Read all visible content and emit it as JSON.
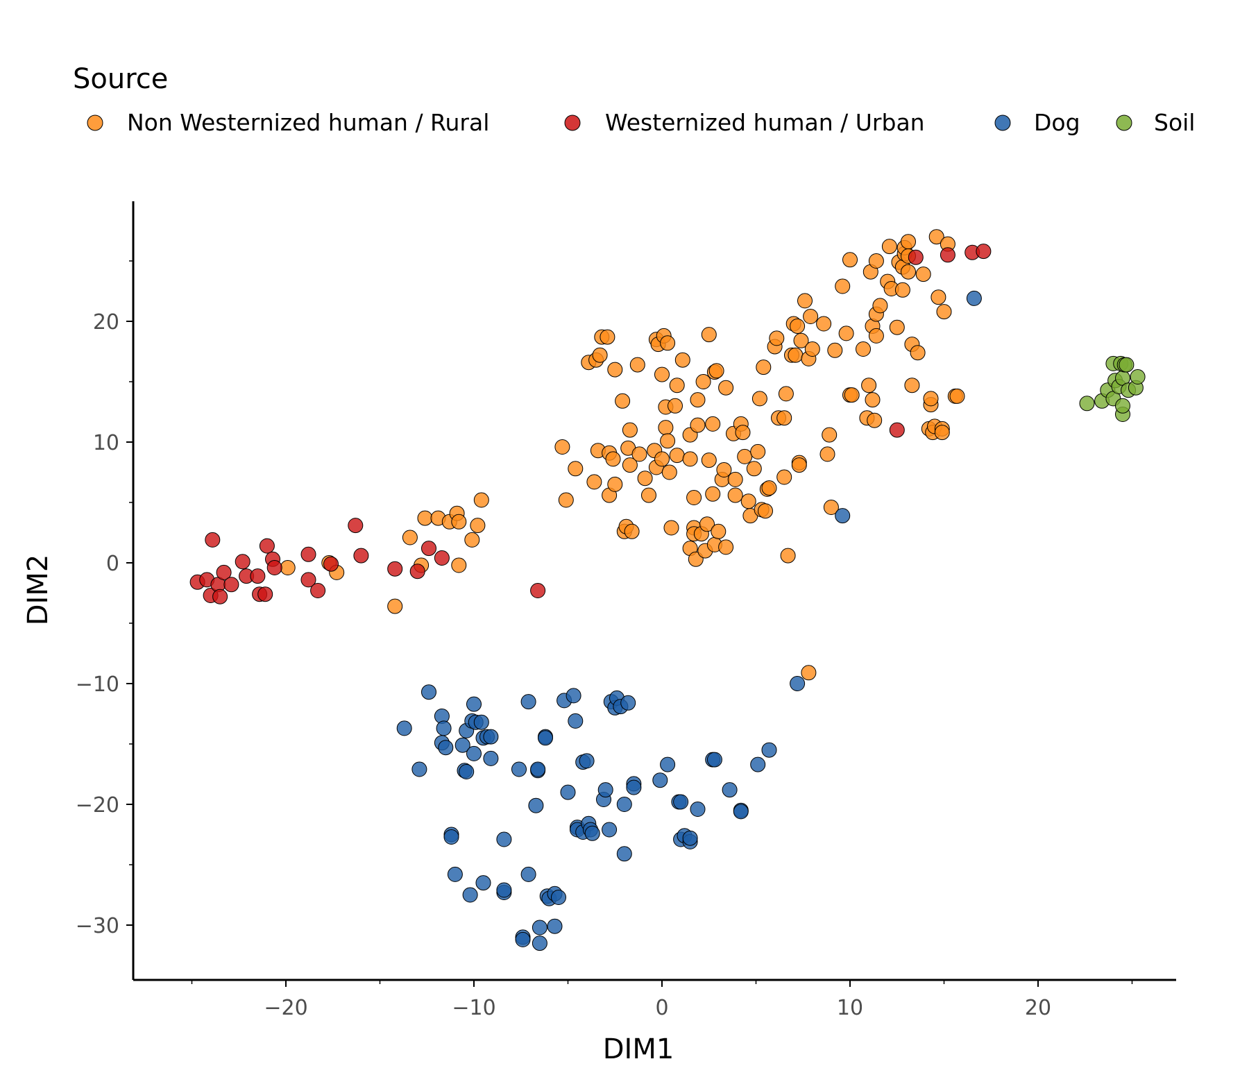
{
  "chart_data": {
    "type": "scatter",
    "xlabel": "DIM1",
    "ylabel": "DIM2",
    "xlim": [
      -27,
      28
    ],
    "ylim": [
      -34.5,
      30
    ],
    "xticks": [
      -20,
      -10,
      0,
      10,
      20
    ],
    "xtick_labels": [
      "−20",
      "−10",
      "0",
      "10",
      "20"
    ],
    "yticks": [
      20,
      10,
      0,
      -10,
      -20,
      -30
    ],
    "ytick_labels": [
      "20",
      "10",
      "0",
      "−10",
      "−20",
      "−30"
    ],
    "grid": false,
    "legend": {
      "title": "Source",
      "position": "top"
    },
    "series": [
      {
        "name": "Non Westernized human / Rural",
        "color": "#ff8c1a",
        "points": [
          [
            -19.9,
            -0.4
          ],
          [
            -17.7,
            0.0
          ],
          [
            -17.3,
            -0.8
          ],
          [
            -14.2,
            -3.6
          ],
          [
            -13.4,
            2.1
          ],
          [
            -12.8,
            -0.2
          ],
          [
            -12.6,
            3.7
          ],
          [
            -11.9,
            3.7
          ],
          [
            -11.3,
            3.4
          ],
          [
            -10.9,
            4.1
          ],
          [
            -10.8,
            3.4
          ],
          [
            -10.8,
            -0.2
          ],
          [
            -10.1,
            1.9
          ],
          [
            -9.8,
            3.1
          ],
          [
            -9.6,
            5.2
          ],
          [
            -5.3,
            9.6
          ],
          [
            -5.1,
            5.2
          ],
          [
            -4.6,
            7.8
          ],
          [
            -3.9,
            16.6
          ],
          [
            -3.6,
            6.7
          ],
          [
            -3.5,
            16.8
          ],
          [
            -3.4,
            9.3
          ],
          [
            -3.3,
            17.2
          ],
          [
            -3.2,
            18.7
          ],
          [
            -2.9,
            18.7
          ],
          [
            -2.8,
            9.1
          ],
          [
            -2.8,
            5.6
          ],
          [
            -2.6,
            8.6
          ],
          [
            -2.5,
            16.0
          ],
          [
            -2.5,
            6.5
          ],
          [
            -2.1,
            13.4
          ],
          [
            -2.0,
            2.6
          ],
          [
            -1.9,
            3.0
          ],
          [
            -1.8,
            9.5
          ],
          [
            -1.7,
            8.1
          ],
          [
            -1.7,
            11.0
          ],
          [
            -1.6,
            2.6
          ],
          [
            -1.3,
            16.4
          ],
          [
            -1.2,
            9.0
          ],
          [
            -0.9,
            7.0
          ],
          [
            -0.7,
            5.6
          ],
          [
            -0.4,
            9.3
          ],
          [
            -0.3,
            18.5
          ],
          [
            -0.3,
            7.9
          ],
          [
            -0.2,
            18.1
          ],
          [
            0.0,
            15.6
          ],
          [
            0.0,
            8.6
          ],
          [
            0.1,
            18.8
          ],
          [
            0.2,
            12.9
          ],
          [
            0.2,
            11.2
          ],
          [
            0.3,
            18.2
          ],
          [
            0.3,
            10.1
          ],
          [
            0.4,
            7.5
          ],
          [
            0.5,
            2.9
          ],
          [
            0.7,
            13.0
          ],
          [
            0.8,
            14.7
          ],
          [
            0.8,
            8.9
          ],
          [
            1.1,
            16.8
          ],
          [
            1.5,
            8.6
          ],
          [
            1.5,
            10.6
          ],
          [
            1.5,
            1.2
          ],
          [
            1.7,
            2.9
          ],
          [
            1.7,
            2.4
          ],
          [
            1.7,
            5.4
          ],
          [
            1.8,
            0.3
          ],
          [
            1.9,
            11.4
          ],
          [
            1.9,
            13.5
          ],
          [
            2.1,
            2.4
          ],
          [
            2.2,
            15.0
          ],
          [
            2.3,
            1.0
          ],
          [
            2.4,
            3.2
          ],
          [
            2.5,
            18.9
          ],
          [
            2.5,
            8.5
          ],
          [
            2.7,
            11.5
          ],
          [
            2.7,
            5.7
          ],
          [
            2.8,
            1.5
          ],
          [
            2.8,
            15.8
          ],
          [
            2.9,
            15.9
          ],
          [
            3.0,
            2.6
          ],
          [
            3.2,
            6.9
          ],
          [
            3.3,
            7.7
          ],
          [
            3.4,
            1.3
          ],
          [
            3.4,
            14.5
          ],
          [
            3.8,
            10.7
          ],
          [
            3.9,
            6.9
          ],
          [
            3.9,
            5.6
          ],
          [
            4.2,
            11.5
          ],
          [
            4.3,
            10.8
          ],
          [
            4.4,
            8.8
          ],
          [
            4.6,
            5.1
          ],
          [
            4.7,
            3.9
          ],
          [
            4.9,
            7.8
          ],
          [
            5.1,
            9.2
          ],
          [
            5.2,
            13.6
          ],
          [
            5.3,
            4.4
          ],
          [
            5.4,
            16.2
          ],
          [
            5.5,
            4.3
          ],
          [
            5.6,
            6.1
          ],
          [
            5.7,
            6.2
          ],
          [
            6.0,
            17.9
          ],
          [
            6.1,
            18.6
          ],
          [
            6.2,
            12.0
          ],
          [
            6.5,
            12.0
          ],
          [
            6.5,
            7.1
          ],
          [
            6.6,
            14.0
          ],
          [
            6.7,
            0.6
          ],
          [
            6.9,
            17.2
          ],
          [
            7.0,
            19.8
          ],
          [
            7.1,
            17.2
          ],
          [
            7.2,
            19.6
          ],
          [
            7.3,
            8.3
          ],
          [
            7.3,
            8.1
          ],
          [
            7.4,
            18.4
          ],
          [
            7.6,
            21.7
          ],
          [
            7.8,
            16.9
          ],
          [
            7.9,
            20.4
          ],
          [
            8.0,
            17.7
          ],
          [
            8.6,
            19.8
          ],
          [
            8.8,
            9.0
          ],
          [
            8.9,
            10.6
          ],
          [
            9.0,
            4.6
          ],
          [
            9.2,
            17.6
          ],
          [
            9.6,
            22.9
          ],
          [
            9.8,
            19.0
          ],
          [
            10.0,
            25.1
          ],
          [
            10.0,
            13.9
          ],
          [
            10.1,
            13.9
          ],
          [
            10.7,
            17.7
          ],
          [
            10.9,
            12.0
          ],
          [
            11.0,
            14.7
          ],
          [
            11.1,
            24.1
          ],
          [
            11.2,
            13.5
          ],
          [
            11.2,
            19.6
          ],
          [
            11.3,
            11.8
          ],
          [
            11.4,
            18.8
          ],
          [
            11.4,
            20.6
          ],
          [
            11.4,
            25.0
          ],
          [
            11.6,
            21.3
          ],
          [
            12.0,
            23.3
          ],
          [
            12.1,
            26.2
          ],
          [
            12.2,
            22.7
          ],
          [
            12.5,
            19.5
          ],
          [
            12.6,
            24.9
          ],
          [
            12.8,
            24.5
          ],
          [
            12.8,
            22.6
          ],
          [
            12.9,
            25.6
          ],
          [
            12.9,
            26.1
          ],
          [
            13.1,
            26.6
          ],
          [
            13.1,
            25.4
          ],
          [
            13.1,
            24.1
          ],
          [
            13.3,
            18.1
          ],
          [
            13.3,
            14.7
          ],
          [
            13.6,
            17.4
          ],
          [
            13.9,
            23.9
          ],
          [
            14.2,
            11.1
          ],
          [
            14.3,
            13.1
          ],
          [
            14.3,
            13.6
          ],
          [
            14.4,
            10.8
          ],
          [
            14.5,
            11.3
          ],
          [
            14.6,
            27.0
          ],
          [
            14.7,
            22.0
          ],
          [
            14.9,
            11.1
          ],
          [
            14.9,
            10.8
          ],
          [
            15.0,
            20.8
          ],
          [
            15.2,
            26.4
          ],
          [
            15.6,
            13.8
          ],
          [
            15.7,
            13.8
          ],
          [
            7.8,
            -9.1
          ]
        ]
      },
      {
        "name": "Westernized human / Urban",
        "color": "#cc1414",
        "points": [
          [
            -24.7,
            -1.6
          ],
          [
            -24.2,
            -1.4
          ],
          [
            -24.0,
            -2.7
          ],
          [
            -23.9,
            1.9
          ],
          [
            -23.6,
            -1.8
          ],
          [
            -23.5,
            -2.8
          ],
          [
            -23.3,
            -0.8
          ],
          [
            -22.9,
            -1.8
          ],
          [
            -22.3,
            0.1
          ],
          [
            -22.1,
            -1.1
          ],
          [
            -21.5,
            -1.1
          ],
          [
            -21.4,
            -2.6
          ],
          [
            -21.1,
            -2.6
          ],
          [
            -21.0,
            1.4
          ],
          [
            -20.7,
            0.3
          ],
          [
            -20.6,
            -0.4
          ],
          [
            -18.8,
            0.7
          ],
          [
            -18.8,
            -1.4
          ],
          [
            -18.3,
            -2.3
          ],
          [
            -17.6,
            -0.1
          ],
          [
            -16.3,
            3.1
          ],
          [
            -16.0,
            0.6
          ],
          [
            -14.2,
            -0.5
          ],
          [
            -13.0,
            -0.7
          ],
          [
            -12.4,
            1.2
          ],
          [
            -11.7,
            0.4
          ],
          [
            -6.6,
            -2.3
          ],
          [
            12.5,
            11.0
          ],
          [
            13.5,
            25.3
          ],
          [
            15.2,
            25.5
          ],
          [
            16.5,
            25.7
          ],
          [
            17.1,
            25.8
          ]
        ]
      },
      {
        "name": "Dog",
        "color": "#1f5fa8",
        "points": [
          [
            -13.7,
            -13.7
          ],
          [
            -12.9,
            -17.1
          ],
          [
            -12.4,
            -10.7
          ],
          [
            -11.7,
            -14.9
          ],
          [
            -11.7,
            -12.7
          ],
          [
            -11.6,
            -13.7
          ],
          [
            -11.5,
            -15.3
          ],
          [
            -11.2,
            -22.5
          ],
          [
            -11.2,
            -22.7
          ],
          [
            -11.0,
            -25.8
          ],
          [
            -10.6,
            -15.1
          ],
          [
            -10.5,
            -17.2
          ],
          [
            -10.4,
            -13.9
          ],
          [
            -10.4,
            -17.3
          ],
          [
            -10.2,
            -27.5
          ],
          [
            -10.1,
            -13.1
          ],
          [
            -10.0,
            -11.7
          ],
          [
            -10.0,
            -15.8
          ],
          [
            -9.9,
            -13.2
          ],
          [
            -9.6,
            -13.2
          ],
          [
            -9.5,
            -26.5
          ],
          [
            -9.5,
            -14.5
          ],
          [
            -9.3,
            -14.4
          ],
          [
            -9.1,
            -16.2
          ],
          [
            -9.1,
            -14.4
          ],
          [
            -8.4,
            -27.3
          ],
          [
            -8.4,
            -22.9
          ],
          [
            -8.4,
            -27.1
          ],
          [
            -7.6,
            -17.1
          ],
          [
            -7.4,
            -31.0
          ],
          [
            -7.4,
            -31.2
          ],
          [
            -7.1,
            -11.5
          ],
          [
            -7.1,
            -25.8
          ],
          [
            -6.7,
            -20.1
          ],
          [
            -6.6,
            -17.2
          ],
          [
            -6.6,
            -17.1
          ],
          [
            -6.5,
            -30.2
          ],
          [
            -6.5,
            -31.5
          ],
          [
            -6.2,
            -14.4
          ],
          [
            -6.2,
            -14.5
          ],
          [
            -6.1,
            -27.6
          ],
          [
            -6.0,
            -27.8
          ],
          [
            -5.7,
            -30.1
          ],
          [
            -5.7,
            -27.4
          ],
          [
            -5.5,
            -27.7
          ],
          [
            -5.2,
            -11.4
          ],
          [
            -5.0,
            -19.0
          ],
          [
            -4.7,
            -11.0
          ],
          [
            -4.6,
            -13.1
          ],
          [
            -4.5,
            -21.9
          ],
          [
            -4.5,
            -22.1
          ],
          [
            -4.2,
            -16.5
          ],
          [
            -4.2,
            -22.3
          ],
          [
            -4.0,
            -16.4
          ],
          [
            -3.9,
            -21.6
          ],
          [
            -3.8,
            -22.1
          ],
          [
            -3.7,
            -22.4
          ],
          [
            -3.1,
            -19.6
          ],
          [
            -3.0,
            -18.8
          ],
          [
            -2.8,
            -22.1
          ],
          [
            -2.7,
            -11.5
          ],
          [
            -2.5,
            -12.0
          ],
          [
            -2.4,
            -11.2
          ],
          [
            -2.2,
            -11.9
          ],
          [
            -2.0,
            -24.1
          ],
          [
            -2.0,
            -20.0
          ],
          [
            -1.8,
            -11.6
          ],
          [
            -1.5,
            -18.3
          ],
          [
            -1.5,
            -18.6
          ],
          [
            -0.1,
            -18.0
          ],
          [
            0.3,
            -16.7
          ],
          [
            0.9,
            -19.8
          ],
          [
            1.0,
            -19.8
          ],
          [
            1.0,
            -22.9
          ],
          [
            1.2,
            -22.6
          ],
          [
            1.5,
            -23.1
          ],
          [
            1.5,
            -22.8
          ],
          [
            1.9,
            -20.4
          ],
          [
            2.7,
            -16.3
          ],
          [
            2.8,
            -16.3
          ],
          [
            3.6,
            -18.8
          ],
          [
            4.2,
            -20.5
          ],
          [
            4.2,
            -20.6
          ],
          [
            5.1,
            -16.7
          ],
          [
            5.7,
            -15.5
          ],
          [
            7.2,
            -10.0
          ],
          [
            9.6,
            3.9
          ],
          [
            16.6,
            21.9
          ]
        ]
      },
      {
        "name": "Soil",
        "color": "#7aad34",
        "points": [
          [
            22.6,
            13.2
          ],
          [
            23.4,
            13.4
          ],
          [
            23.7,
            14.3
          ],
          [
            24.0,
            16.5
          ],
          [
            24.0,
            13.6
          ],
          [
            24.1,
            15.1
          ],
          [
            24.3,
            14.6
          ],
          [
            24.4,
            16.5
          ],
          [
            24.5,
            12.3
          ],
          [
            24.5,
            13.0
          ],
          [
            24.5,
            15.3
          ],
          [
            24.6,
            16.4
          ],
          [
            24.7,
            16.4
          ],
          [
            24.8,
            14.3
          ],
          [
            25.2,
            14.5
          ],
          [
            25.3,
            15.4
          ]
        ]
      }
    ]
  }
}
